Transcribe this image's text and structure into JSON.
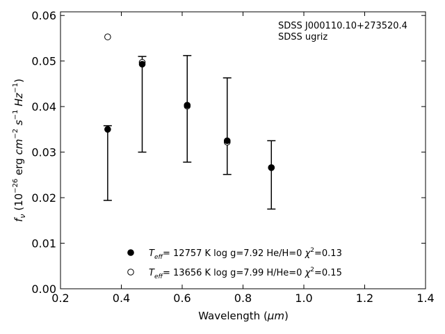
{
  "chart_data": {
    "type": "scatter",
    "title": "",
    "xlabel": "Wavelength (",
    "xlabel_symbol": "μm",
    "xlabel_end": ")",
    "ylabel": {
      "f": "f",
      "f_sub": "ν",
      "open": " (10",
      "exp1": "−26",
      "erg": " erg ",
      "cm": "cm",
      "exp2": "−2",
      "s": " s",
      "exp3": "−1",
      "hz": " Hz",
      "exp4": "−1",
      "close": ")"
    },
    "xlim": [
      0.2,
      1.4
    ],
    "ylim": [
      0.0,
      0.0608
    ],
    "xticks": [
      "0.2",
      "0.4",
      "0.6",
      "0.8",
      "1.0",
      "1.2",
      "1.4"
    ],
    "xtick_values": [
      0.2,
      0.4,
      0.6,
      0.8,
      1.0,
      1.2,
      1.4
    ],
    "yticks": [
      "0.00",
      "0.01",
      "0.02",
      "0.03",
      "0.04",
      "0.05",
      "0.06"
    ],
    "ytick_values": [
      0.0,
      0.01,
      0.02,
      0.03,
      0.04,
      0.05,
      0.06
    ],
    "grid": false,
    "annotation_lines": [
      "SDSS J000110.10+273520.4",
      "SDSS ugriz"
    ],
    "observed": {
      "x": [
        0.3551,
        0.4686,
        0.6166,
        0.748,
        0.8932
      ],
      "y": [
        0.0276,
        0.0405,
        0.0395,
        0.0357,
        0.025
      ],
      "yerr": [
        0.0082,
        0.0105,
        0.0117,
        0.0106,
        0.0075
      ]
    },
    "series": [
      {
        "marker": "filled",
        "x": [
          0.3551,
          0.4686,
          0.6166,
          0.748,
          0.8932
        ],
        "y": [
          0.035,
          0.0493,
          0.0403,
          0.0325,
          0.0266
        ]
      },
      {
        "marker": "open",
        "x": [
          0.3551,
          0.4686,
          0.6166,
          0.748,
          0.8932
        ],
        "y": [
          0.0553,
          0.0497,
          0.0401,
          0.0322,
          0.0266
        ]
      }
    ],
    "legend_placement": "lower-center",
    "legend": [
      {
        "marker": "filled",
        "T": "T",
        "T_sub": "eff",
        "rest1": "= 12757 K  log g=7.92  He/H=0  ",
        "chi": "χ",
        "chi_sup": "2",
        "rest2": "=0.13"
      },
      {
        "marker": "open",
        "T": "T",
        "T_sub": "eff",
        "rest1": "= 13656 K  log g=7.99  H/He=0  ",
        "chi": "χ",
        "chi_sup": "2",
        "rest2": "=0.15"
      }
    ],
    "colors": {
      "axes": "#000000",
      "marker_fill": "#000000",
      "open_fill": "#ffffff"
    }
  }
}
